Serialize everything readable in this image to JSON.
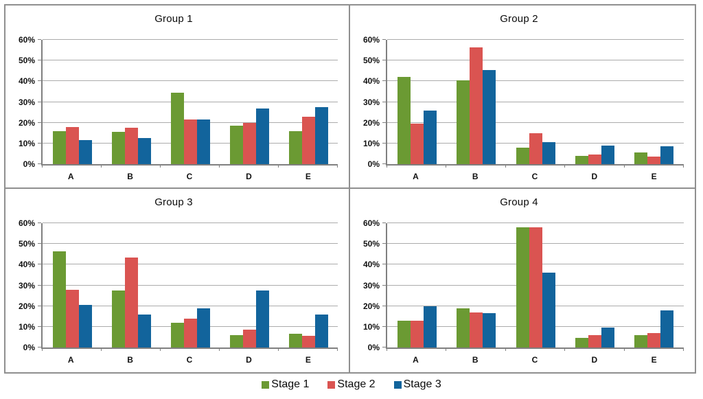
{
  "page": {
    "background": "#ffffff",
    "border_color": "#8f8f8f"
  },
  "legend": {
    "position": "bottom-center",
    "items": [
      {
        "label": "Stage 1",
        "color": "#6b9a33"
      },
      {
        "label": "Stage 2",
        "color": "#da5451"
      },
      {
        "label": "Stage 3",
        "color": "#12649c"
      }
    ]
  },
  "chart_data": [
    {
      "type": "bar",
      "title": "Group 1",
      "categories": [
        "A",
        "B",
        "C",
        "D",
        "E"
      ],
      "ylim": [
        0,
        60
      ],
      "yticks": [
        "0%",
        "10%",
        "20%",
        "30%",
        "40%",
        "50%",
        "60%"
      ],
      "grid": true,
      "series": [
        {
          "name": "Stage 1",
          "color": "#6b9a33",
          "values": [
            16,
            15.5,
            34.5,
            18.5,
            16
          ]
        },
        {
          "name": "Stage 2",
          "color": "#da5451",
          "values": [
            18,
            17.5,
            21.5,
            20,
            23
          ]
        },
        {
          "name": "Stage 3",
          "color": "#12649c",
          "values": [
            11.5,
            12.5,
            21.5,
            27,
            27.5
          ]
        }
      ]
    },
    {
      "type": "bar",
      "title": "Group 2",
      "categories": [
        "A",
        "B",
        "C",
        "D",
        "E"
      ],
      "ylim": [
        0,
        60
      ],
      "yticks": [
        "0%",
        "10%",
        "20%",
        "30%",
        "40%",
        "50%",
        "60%"
      ],
      "grid": true,
      "series": [
        {
          "name": "Stage 1",
          "color": "#6b9a33",
          "values": [
            42,
            40.5,
            8,
            4,
            5.5
          ]
        },
        {
          "name": "Stage 2",
          "color": "#da5451",
          "values": [
            19.5,
            56.5,
            15,
            4.5,
            3.5
          ]
        },
        {
          "name": "Stage 3",
          "color": "#12649c",
          "values": [
            26,
            45.5,
            10.5,
            9,
            8.5
          ]
        }
      ]
    },
    {
      "type": "bar",
      "title": "Group 3",
      "categories": [
        "A",
        "B",
        "C",
        "D",
        "E"
      ],
      "ylim": [
        0,
        60
      ],
      "yticks": [
        "0%",
        "10%",
        "20%",
        "30%",
        "40%",
        "50%",
        "60%"
      ],
      "grid": true,
      "series": [
        {
          "name": "Stage 1",
          "color": "#6b9a33",
          "values": [
            46.5,
            27.5,
            12,
            6,
            6.5
          ]
        },
        {
          "name": "Stage 2",
          "color": "#da5451",
          "values": [
            28,
            43.5,
            14,
            8.5,
            5.5
          ]
        },
        {
          "name": "Stage 3",
          "color": "#12649c",
          "values": [
            20.5,
            16,
            19,
            27.5,
            16
          ]
        }
      ]
    },
    {
      "type": "bar",
      "title": "Group 4",
      "categories": [
        "A",
        "B",
        "C",
        "D",
        "E"
      ],
      "ylim": [
        0,
        60
      ],
      "yticks": [
        "0%",
        "10%",
        "20%",
        "30%",
        "40%",
        "50%",
        "60%"
      ],
      "grid": true,
      "series": [
        {
          "name": "Stage 1",
          "color": "#6b9a33",
          "values": [
            13,
            19,
            58,
            4.5,
            6
          ]
        },
        {
          "name": "Stage 2",
          "color": "#da5451",
          "values": [
            13,
            17,
            58,
            6,
            7
          ]
        },
        {
          "name": "Stage 3",
          "color": "#12649c",
          "values": [
            20,
            16.5,
            36,
            9.5,
            18
          ]
        }
      ]
    }
  ]
}
